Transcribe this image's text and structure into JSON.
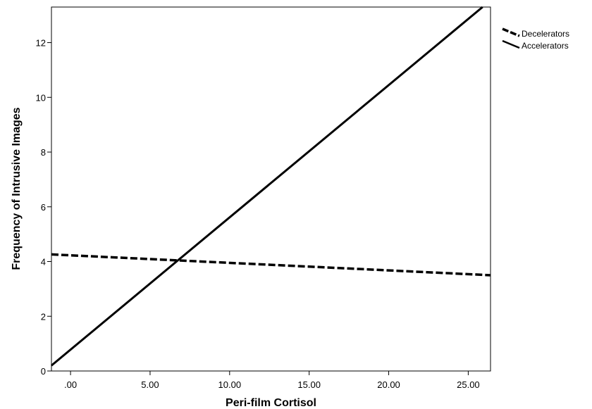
{
  "chart_data": {
    "type": "line",
    "xlabel": "Peri-film Cortisol",
    "ylabel": "Frequency of Intrusive Images",
    "xlim": [
      -1.2,
      26.4
    ],
    "ylim": [
      0,
      13.3
    ],
    "x_ticks": [
      0,
      5,
      10,
      15,
      20,
      25
    ],
    "x_tick_labels": [
      ".00",
      "5.00",
      "10.00",
      "15.00",
      "20.00",
      "25.00"
    ],
    "y_ticks": [
      0,
      2,
      4,
      6,
      8,
      10,
      12
    ],
    "y_tick_labels": [
      "0",
      "2",
      "4",
      "6",
      "8",
      "10",
      "12"
    ],
    "grid": false,
    "legend_position": "right, outside plot (top)",
    "series": [
      {
        "name": "Decelerators",
        "style": "dashed",
        "color": "#000000",
        "x": [
          -1.2,
          26.4
        ],
        "y": [
          4.26,
          3.5
        ]
      },
      {
        "name": "Accelerators",
        "style": "solid",
        "color": "#000000",
        "x": [
          -1.2,
          25.9
        ],
        "y": [
          0.2,
          13.3
        ]
      }
    ]
  }
}
